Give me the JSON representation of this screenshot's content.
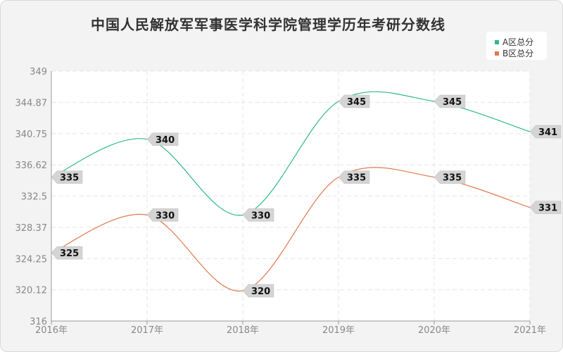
{
  "chart_data": {
    "type": "line",
    "title": "中国人民解放军军事医学科学院管理学历年考研分数线",
    "x": [
      "2016年",
      "2017年",
      "2018年",
      "2019年",
      "2020年",
      "2021年"
    ],
    "ylim": [
      316,
      349
    ],
    "yticks": [
      "349",
      "344.87",
      "340.75",
      "336.62",
      "332.5",
      "328.37",
      "324.25",
      "320.12",
      "316"
    ],
    "ytick_values": [
      349,
      344.87,
      340.75,
      336.62,
      332.5,
      328.37,
      324.25,
      320.12,
      316
    ],
    "grid": true,
    "legend_position": "top-right",
    "series": [
      {
        "name": "A区总分",
        "color": "#2fb88e",
        "values": [
          335,
          340,
          330,
          345,
          345,
          341
        ]
      },
      {
        "name": "B区总分",
        "color": "#e07a4f",
        "values": [
          325,
          330,
          320,
          335,
          335,
          331
        ]
      }
    ]
  }
}
